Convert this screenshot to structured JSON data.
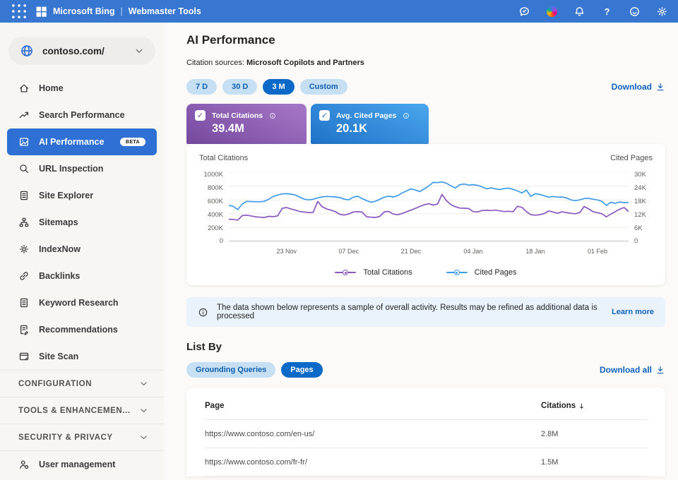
{
  "topbar": {
    "product": "Microsoft Bing",
    "separator": "|",
    "suite": "Webmaster Tools",
    "icons": [
      "feedback-chat-icon",
      "copilot-icon",
      "notifications-bell-icon",
      "help-icon",
      "smiley-feedback-icon",
      "settings-gear-icon"
    ]
  },
  "sidebar": {
    "site_selector": {
      "label": "contoso.com/"
    },
    "items": [
      {
        "type": "link",
        "icon": "home-icon",
        "label": "Home"
      },
      {
        "type": "link",
        "icon": "trend-up-icon",
        "label": "Search Performance"
      },
      {
        "type": "link",
        "icon": "image-chart-icon",
        "label": "AI Performance",
        "selected": true,
        "badge": "BETA"
      },
      {
        "type": "link",
        "icon": "magnifier-icon",
        "label": "URL Inspection"
      },
      {
        "type": "link",
        "icon": "document-icon",
        "label": "Site Explorer"
      },
      {
        "type": "link",
        "icon": "sitemap-icon",
        "label": "Sitemaps"
      },
      {
        "type": "link",
        "icon": "indexnow-gear-icon",
        "label": "IndexNow"
      },
      {
        "type": "link",
        "icon": "link-icon",
        "label": "Backlinks"
      },
      {
        "type": "link",
        "icon": "document-icon",
        "label": "Keyword Research"
      },
      {
        "type": "link",
        "icon": "document-edit-icon",
        "label": "Recommendations"
      },
      {
        "type": "link",
        "icon": "browser-window-icon",
        "label": "Site Scan"
      },
      {
        "type": "section",
        "label": "CONFIGURATION"
      },
      {
        "type": "section",
        "label": "TOOLS & ENHANCEMEN..."
      },
      {
        "type": "section",
        "label": "SECURITY & PRIVACY"
      },
      {
        "type": "link",
        "icon": "user-gear-icon",
        "label": "User management",
        "divider": true
      }
    ]
  },
  "main": {
    "title": "AI Performance",
    "citation_sources_label": "Citation sources:",
    "citation_sources_value": "Microsoft Copilots and Partners",
    "time_filters": [
      {
        "label": "7 D"
      },
      {
        "label": "30 D"
      },
      {
        "label": "3 M",
        "selected": true
      },
      {
        "label": "Custom"
      }
    ],
    "download_label": "Download"
  },
  "cards": [
    {
      "label": "Total Citations",
      "value": "39.4M",
      "checked": true,
      "theme": "purple",
      "gradient": [
        "#74489E",
        "#A678C8"
      ]
    },
    {
      "label": "Avg. Cited Pages",
      "value": "20.1K",
      "checked": true,
      "theme": "blue",
      "gradient": [
        "#1F72C8",
        "#4BA6EC"
      ]
    }
  ],
  "chart_data": {
    "type": "line",
    "grid": true,
    "legend_position": "bottom",
    "left_axis": {
      "label": "Total Citations",
      "ticks": [
        "1000K",
        "800K",
        "600K",
        "400K",
        "200K",
        "0"
      ],
      "max": 1000,
      "unit": "K"
    },
    "right_axis": {
      "label": "Cited Pages",
      "ticks": [
        "30K",
        "24K",
        "18K",
        "12K",
        "6K",
        "0"
      ],
      "max": 30,
      "unit": "K"
    },
    "x": {
      "n": 91,
      "tick_labels": [
        "23 Nov",
        "07 Dec",
        "21 Dec",
        "04 Jan",
        "18 Jan",
        "01 Feb"
      ],
      "tick_indices": [
        13,
        27,
        41,
        55,
        69,
        83
      ]
    },
    "series": [
      {
        "name": "Total Citations",
        "axis": "left",
        "color": "#8A57C0",
        "unit": "K",
        "values": [
          320,
          318,
          308,
          372,
          380,
          368,
          356,
          350,
          346,
          362,
          358,
          368,
          478,
          490,
          468,
          452,
          432,
          424,
          416,
          420,
          578,
          502,
          470,
          452,
          430,
          392,
          382,
          396,
          426,
          430,
          424,
          356,
          350,
          346,
          362,
          428,
          434,
          396,
          386,
          402,
          428,
          452,
          478,
          505,
          530,
          545,
          525,
          540,
          680,
          590,
          532,
          502,
          482,
          480,
          476,
          432,
          426,
          446,
          450,
          446,
          452,
          442,
          432,
          436,
          430,
          508,
          492,
          430,
          386,
          380,
          386,
          402,
          440,
          426,
          406,
          430,
          416,
          406,
          400,
          416,
          505,
          470,
          430,
          415,
          400,
          355,
          395,
          430,
          465,
          490,
          432
        ]
      },
      {
        "name": "Cited Pages",
        "axis": "right",
        "color": "#3E9BE9",
        "unit": "K",
        "values": [
          15.6,
          15.2,
          13.8,
          16.2,
          17.4,
          17.3,
          17.2,
          17.2,
          17.4,
          18.3,
          19.5,
          20.1,
          20.6,
          20.7,
          20.5,
          20.1,
          19.2,
          18.3,
          18.0,
          18.3,
          18.9,
          19.3,
          19.5,
          19.4,
          19.3,
          19.0,
          18.3,
          18.0,
          19.2,
          19.6,
          18.6,
          17.7,
          17.0,
          17.4,
          18.3,
          19.2,
          19.6,
          19.3,
          19.8,
          21.0,
          21.9,
          22.8,
          22.3,
          21.6,
          22.8,
          24.0,
          25.6,
          25.5,
          25.8,
          25.2,
          24.1,
          23.1,
          24.6,
          24.9,
          24.4,
          24.6,
          24.3,
          23.7,
          22.8,
          23.2,
          22.8,
          22.5,
          22.9,
          23.1,
          22.6,
          21.9,
          21.0,
          22.3,
          19.5,
          20.7,
          20.4,
          19.8,
          19.2,
          19.5,
          19.2,
          19.3,
          18.9,
          18.0,
          17.7,
          18.0,
          18.6,
          18.7,
          18.3,
          18.0,
          17.4,
          15.6,
          17.0,
          16.5,
          17.1,
          16.8,
          16.9
        ]
      }
    ],
    "legend": [
      {
        "name": "Total Citations",
        "color": "#8A57C0"
      },
      {
        "name": "Cited Pages",
        "color": "#3E9BE9"
      }
    ]
  },
  "info_banner": {
    "text": "The data shown below represents a sample of overall activity. Results may be refined as additional data is processed",
    "link": "Learn more"
  },
  "list_by": {
    "heading": "List By",
    "filters": [
      {
        "label": "Grounding Queries"
      },
      {
        "label": "Pages",
        "selected": true
      }
    ],
    "download_label": "Download all"
  },
  "table": {
    "columns": [
      {
        "label": "Page"
      },
      {
        "label": "Citations",
        "sort": "desc"
      }
    ],
    "rows": [
      {
        "page": "https://www.contoso.com/en-us/",
        "citations": "2.8M"
      },
      {
        "page": "https://www.contoso.com/fr-fr/",
        "citations": "1.5M"
      }
    ]
  },
  "colors": {
    "topbar": "#3776D1",
    "sidebar_selected": "#2E70D3",
    "pill_selected": "#0B69C7",
    "pill_light_bg": "#C7DFF3",
    "pill_light_text": "#0E5FAE",
    "link_blue": "#0E62BE",
    "line_purple": "#8A57C0",
    "line_blue": "#3E9BE9",
    "banner_bg": "#EAF3FB"
  }
}
